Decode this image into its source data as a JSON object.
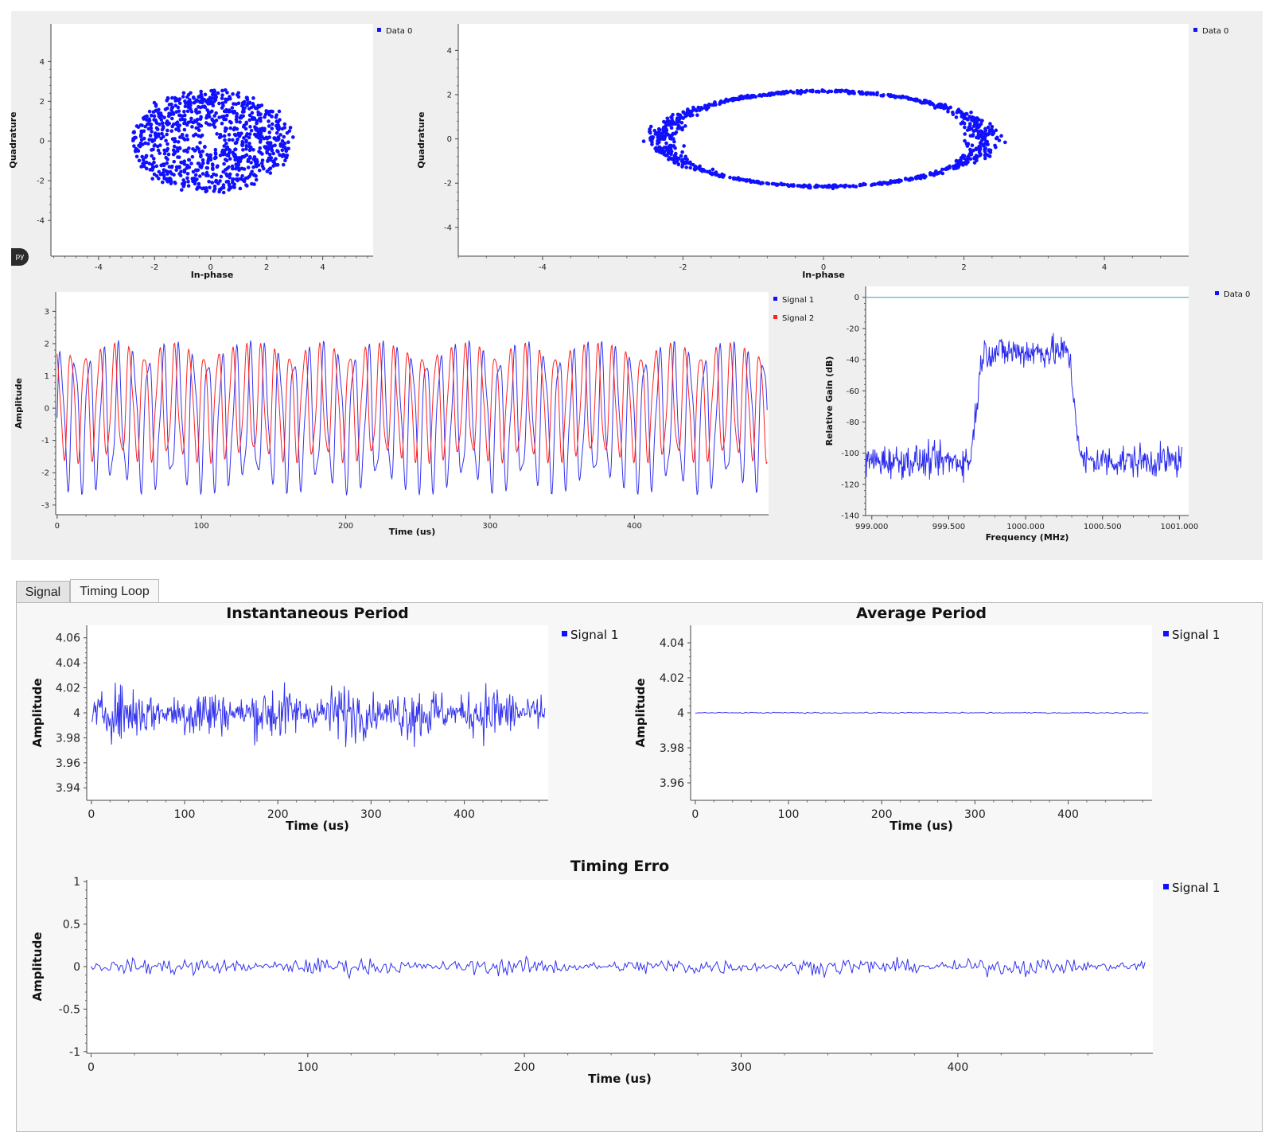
{
  "py_badge": "py",
  "tabs": [
    {
      "label": "Signal",
      "active": false
    },
    {
      "label": "Timing Loop",
      "active": true
    }
  ],
  "colors": {
    "blue": "#1010ff",
    "red": "#ff2020",
    "line_blue": "#3333ee",
    "teal": "#3aa0b0"
  },
  "chart_data": [
    {
      "id": "constellation-1",
      "type": "scatter",
      "xlabel": "In-phase",
      "ylabel": "Quadrature",
      "xticks": [
        -4,
        -2,
        0,
        2,
        4
      ],
      "yticks": [
        4,
        2,
        0,
        -2,
        -4
      ],
      "xlim": [
        -5.7,
        5.8
      ],
      "ylim": [
        -5.8,
        5.9
      ],
      "legend": [
        {
          "name": "Data 0",
          "color": "#1010ff"
        }
      ],
      "shape": "spiral",
      "center": [
        0,
        0
      ],
      "inner_radius": 0.3,
      "outer_radius": 2.7,
      "points": 900
    },
    {
      "id": "constellation-2",
      "type": "scatter",
      "xlabel": "In-phase",
      "ylabel": "Quadrature",
      "xticks": [
        -4,
        -2,
        0,
        2,
        4
      ],
      "yticks": [
        4,
        2,
        0,
        -2,
        -4
      ],
      "xlim": [
        -5.2,
        5.2
      ],
      "ylim": [
        -5.3,
        5.2
      ],
      "legend": [
        {
          "name": "Data 0",
          "color": "#1010ff"
        }
      ],
      "shape": "ellipse",
      "center": [
        0,
        0
      ],
      "rx": 2.3,
      "ry": 2.15,
      "points": 900
    },
    {
      "id": "signal-time",
      "type": "line",
      "xlabel": "Time (us)",
      "ylabel": "Amplitude",
      "xticks": [
        0,
        100,
        200,
        300,
        400
      ],
      "yticks": [
        3,
        2,
        1,
        0,
        -1,
        -2,
        -3
      ],
      "xlim": [
        -1,
        493
      ],
      "ylim": [
        -3.3,
        3.6
      ],
      "series": [
        {
          "name": "Signal 1",
          "color": "#3333ee",
          "amplitude": 2.3,
          "offset": -0.3
        },
        {
          "name": "Signal 2",
          "color": "#ff2020",
          "amplitude": 1.9,
          "offset": 0.15
        }
      ]
    },
    {
      "id": "spectrum",
      "type": "line",
      "xlabel": "Frequency (MHz)",
      "ylabel": "Relative Gain (dB)",
      "xticks": [
        999.0,
        999.5,
        1000.0,
        1000.5,
        1001.0
      ],
      "xticklabels": [
        "999.000",
        "999.500",
        "1000.000",
        "1000.500",
        "1001.000"
      ],
      "yticks": [
        0,
        -20,
        -40,
        -60,
        -80,
        -100,
        -120,
        -140
      ],
      "xlim": [
        998.96,
        1001.06
      ],
      "ylim": [
        -140,
        7
      ],
      "legend": [
        {
          "name": "Data 0",
          "color": "#1010ff"
        }
      ],
      "reference_line_db": 0,
      "passband": [
        999.72,
        1000.28
      ],
      "passband_level_db": -35,
      "stopband_level_db": -105
    },
    {
      "id": "instantaneous-period",
      "type": "line",
      "title": "Instantaneous Period",
      "xlabel": "Time (us)",
      "ylabel": "Amplitude",
      "xticks": [
        0,
        100,
        200,
        300,
        400
      ],
      "yticks": [
        4.06,
        4.04,
        4.02,
        4,
        3.98,
        3.96,
        3.94
      ],
      "xlim": [
        -5,
        490
      ],
      "ylim": [
        3.93,
        4.07
      ],
      "series": [
        {
          "name": "Signal 1",
          "color": "#3333ee",
          "center": 4.0,
          "amplitude": 0.05
        }
      ]
    },
    {
      "id": "average-period",
      "type": "line",
      "title": "Average Period",
      "xlabel": "Time (us)",
      "ylabel": "Amplitude",
      "xticks": [
        0,
        100,
        200,
        300,
        400
      ],
      "yticks": [
        4.04,
        4.02,
        4,
        3.98,
        3.96
      ],
      "xlim": [
        -5,
        490
      ],
      "ylim": [
        3.95,
        4.05
      ],
      "series": [
        {
          "name": "Signal 1",
          "color": "#3333ee",
          "value": 4.0
        }
      ]
    },
    {
      "id": "timing-error",
      "type": "line",
      "title": "Timing Erro",
      "xlabel": "Time (us)",
      "ylabel": "Amplitude",
      "xticks": [
        0,
        100,
        200,
        300,
        400
      ],
      "yticks": [
        1,
        0.5,
        0,
        -0.5,
        -1
      ],
      "xlim": [
        -2,
        490
      ],
      "ylim": [
        -1.02,
        1.02
      ],
      "series": [
        {
          "name": "Signal 1",
          "color": "#3333ee",
          "center": 0.0,
          "amplitude": 0.2
        }
      ]
    }
  ]
}
